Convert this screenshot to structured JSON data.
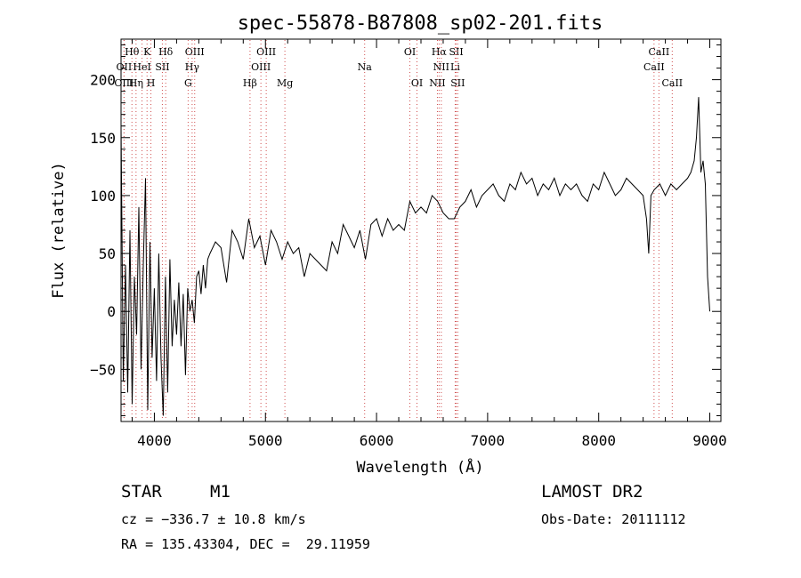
{
  "chart_data": {
    "type": "line",
    "title": "spec-55878-B87808_sp02-201.fits",
    "xlabel": "Wavelength (Å)",
    "ylabel": "Flux (relative)",
    "xlim": [
      3700,
      9100
    ],
    "ylim": [
      -95,
      235
    ],
    "xticks": [
      4000,
      5000,
      6000,
      7000,
      8000,
      9000
    ],
    "yticks": [
      -50,
      0,
      50,
      100,
      150,
      200
    ],
    "x": [
      3700,
      3720,
      3740,
      3760,
      3780,
      3800,
      3820,
      3840,
      3860,
      3880,
      3900,
      3920,
      3940,
      3960,
      3980,
      4000,
      4020,
      4040,
      4060,
      4080,
      4100,
      4120,
      4140,
      4160,
      4180,
      4200,
      4220,
      4240,
      4260,
      4280,
      4300,
      4320,
      4340,
      4360,
      4380,
      4400,
      4420,
      4440,
      4460,
      4480,
      4500,
      4550,
      4600,
      4650,
      4700,
      4750,
      4800,
      4850,
      4900,
      4950,
      5000,
      5050,
      5100,
      5150,
      5200,
      5250,
      5300,
      5350,
      5400,
      5450,
      5500,
      5550,
      5600,
      5650,
      5700,
      5750,
      5800,
      5850,
      5900,
      5950,
      6000,
      6050,
      6100,
      6150,
      6200,
      6250,
      6300,
      6350,
      6400,
      6450,
      6500,
      6550,
      6600,
      6650,
      6700,
      6750,
      6800,
      6850,
      6900,
      6950,
      7000,
      7050,
      7100,
      7150,
      7200,
      7250,
      7300,
      7350,
      7400,
      7450,
      7500,
      7550,
      7600,
      7650,
      7700,
      7750,
      7800,
      7850,
      7900,
      7950,
      8000,
      8050,
      8100,
      8150,
      8200,
      8250,
      8300,
      8350,
      8400,
      8430,
      8450,
      8470,
      8500,
      8550,
      8600,
      8650,
      8700,
      8750,
      8800,
      8830,
      8860,
      8880,
      8900,
      8920,
      8940,
      8960,
      8980,
      9000
    ],
    "y": [
      160,
      -60,
      40,
      -70,
      70,
      -80,
      30,
      -20,
      90,
      -50,
      40,
      115,
      -85,
      60,
      -40,
      20,
      -60,
      50,
      -40,
      -90,
      30,
      -70,
      45,
      -30,
      10,
      -20,
      25,
      -30,
      15,
      -55,
      20,
      0,
      10,
      -10,
      30,
      35,
      15,
      40,
      20,
      45,
      50,
      60,
      55,
      25,
      70,
      60,
      45,
      80,
      55,
      65,
      40,
      70,
      60,
      45,
      60,
      50,
      55,
      30,
      50,
      45,
      40,
      35,
      60,
      50,
      75,
      65,
      55,
      70,
      45,
      75,
      80,
      65,
      80,
      70,
      75,
      70,
      95,
      85,
      90,
      85,
      100,
      95,
      85,
      80,
      80,
      90,
      95,
      105,
      90,
      100,
      105,
      110,
      100,
      95,
      110,
      105,
      120,
      110,
      115,
      100,
      110,
      105,
      115,
      100,
      110,
      105,
      110,
      100,
      95,
      110,
      105,
      120,
      110,
      100,
      105,
      115,
      110,
      105,
      100,
      80,
      50,
      100,
      105,
      110,
      100,
      110,
      105,
      110,
      115,
      120,
      130,
      150,
      185,
      120,
      130,
      110,
      30,
      0
    ]
  },
  "lines": [
    {
      "label": "Hθ",
      "x": 3798,
      "row": 0
    },
    {
      "label": "K",
      "x": 3934,
      "row": 0
    },
    {
      "label": "Hδ",
      "x": 4102,
      "row": 0
    },
    {
      "label": "OIII",
      "x": 4363,
      "row": 0
    },
    {
      "label": "OIII",
      "x": 5007,
      "row": 0
    },
    {
      "label": "OI",
      "x": 6300,
      "row": 0
    },
    {
      "label": "Hα",
      "x": 6563,
      "row": 0
    },
    {
      "label": "SII",
      "x": 6717,
      "row": 0
    },
    {
      "label": "CaII",
      "x": 8542,
      "row": 0
    },
    {
      "label": "OII",
      "x": 3727,
      "row": 1
    },
    {
      "label": "HeI",
      "x": 3889,
      "row": 1
    },
    {
      "label": "SII",
      "x": 4072,
      "row": 1
    },
    {
      "label": "Hγ",
      "x": 4340,
      "row": 1
    },
    {
      "label": "OIII",
      "x": 4959,
      "row": 1
    },
    {
      "label": "Na",
      "x": 5893,
      "row": 1
    },
    {
      "label": "NII",
      "x": 6583,
      "row": 1
    },
    {
      "label": "Li",
      "x": 6708,
      "row": 1
    },
    {
      "label": "CaII",
      "x": 8498,
      "row": 1
    },
    {
      "label": "OIII",
      "x": 3727,
      "row": 2
    },
    {
      "label": "Hη",
      "x": 3835,
      "row": 2
    },
    {
      "label": "H",
      "x": 3969,
      "row": 2
    },
    {
      "label": "G",
      "x": 4304,
      "row": 2
    },
    {
      "label": "Hβ",
      "x": 4861,
      "row": 2
    },
    {
      "label": "Mg",
      "x": 5175,
      "row": 2
    },
    {
      "label": "OI",
      "x": 6364,
      "row": 2
    },
    {
      "label": "NII",
      "x": 6548,
      "row": 2
    },
    {
      "label": "SII",
      "x": 6731,
      "row": 2
    },
    {
      "label": "CaII",
      "x": 8662,
      "row": 2
    }
  ],
  "info": {
    "obj_class": "STAR",
    "subclass": "M1",
    "survey": "LAMOST DR2",
    "cz": "cz = −336.7 ± 10.8 km/s",
    "obs_date": "Obs-Date: 20111112",
    "radec": "RA = 135.43304, DEC =  29.11959"
  },
  "colors": {
    "line_marker": "#d05050",
    "axis": "#000000",
    "spectrum": "#000000"
  }
}
